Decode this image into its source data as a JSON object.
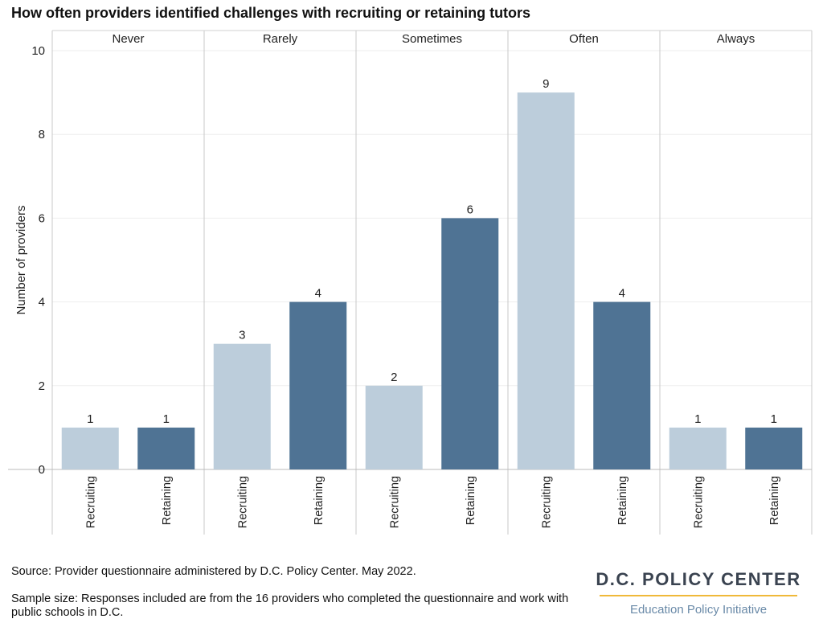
{
  "title": "How often providers identified challenges with recruiting or retaining tutors",
  "footer": {
    "source": "Source: Provider questionnaire administered by D.C. Policy Center. May 2022.",
    "sample": "Sample size: Responses included are from the 16 providers who completed the questionnaire and work with public schools in D.C."
  },
  "logo": {
    "name": "D.C. POLICY CENTER",
    "subtitle": "Education Policy Initiative"
  },
  "colors": {
    "recruiting": "#bccddb",
    "retaining": "#4f7394",
    "accent": "#f0b93a"
  },
  "chart_data": {
    "type": "bar",
    "title": "How often providers identified challenges with recruiting or retaining tutors",
    "ylabel": "Number of providers",
    "ylim": [
      0,
      10
    ],
    "yticks": [
      0,
      2,
      4,
      6,
      8,
      10
    ],
    "facets": [
      "Never",
      "Rarely",
      "Sometimes",
      "Often",
      "Always"
    ],
    "bar_categories": [
      "Recruiting",
      "Retaining"
    ],
    "series": [
      {
        "name": "Recruiting",
        "values": [
          1,
          3,
          2,
          9,
          1
        ]
      },
      {
        "name": "Retaining",
        "values": [
          1,
          4,
          6,
          4,
          1
        ]
      }
    ],
    "grid": true
  }
}
